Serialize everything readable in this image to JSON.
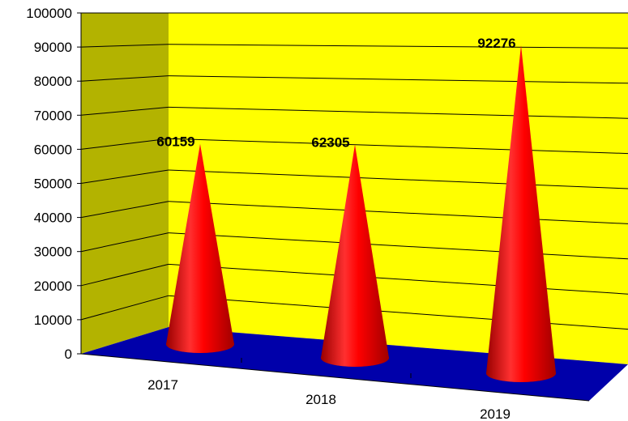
{
  "chart_data": {
    "type": "bar",
    "style": "3d-cone",
    "categories": [
      "2017",
      "2018",
      "2019"
    ],
    "values": [
      60159,
      62305,
      92276
    ],
    "data_labels": [
      "60159",
      "62305",
      "92276"
    ],
    "ylim": [
      0,
      100000
    ],
    "yticks": [
      "0",
      "10000",
      "20000",
      "30000",
      "40000",
      "50000",
      "60000",
      "70000",
      "80000",
      "90000",
      "100000"
    ],
    "grid": true,
    "legend": "none",
    "colors": {
      "cone": "#ff0000",
      "back_wall": "#ffff00",
      "side_wall": "#b3b300",
      "floor": "#0000aa"
    }
  }
}
